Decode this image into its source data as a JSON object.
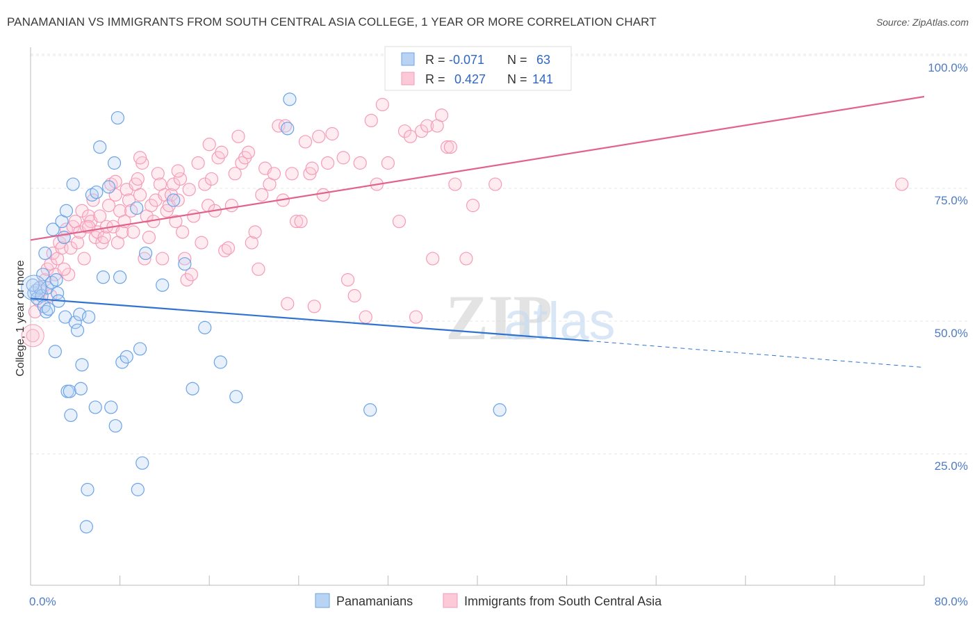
{
  "title": "PANAMANIAN VS IMMIGRANTS FROM SOUTH CENTRAL ASIA COLLEGE, 1 YEAR OR MORE CORRELATION CHART",
  "source": "Source: ZipAtlas.com",
  "watermark": {
    "zip": "ZIP",
    "atlas": "atlas"
  },
  "colors": {
    "blue": "#6aa3e8",
    "blue_line": "#2f73cf",
    "pink": "#f59bb8",
    "pink_line": "#e2628e",
    "axis_text": "#4f7bc4"
  },
  "legend": {
    "r_label": "R =",
    "n_label": "N =",
    "rows": [
      {
        "series": "blue",
        "r": "-0.071",
        "n": "63"
      },
      {
        "series": "pink",
        "r": "0.427",
        "n": "141"
      }
    ]
  },
  "chart_data": {
    "type": "scatter",
    "title": "PANAMANIAN VS IMMIGRANTS FROM SOUTH CENTRAL ASIA COLLEGE, 1 YEAR OR MORE CORRELATION CHART",
    "xlabel": "",
    "ylabel": "College, 1 year or more",
    "xlim": [
      0,
      80
    ],
    "ylim": [
      0,
      105
    ],
    "x_tick_labels": [
      "0.0%",
      "80.0%"
    ],
    "y_tick_labels": [
      "100.0%",
      "75.0%",
      "50.0%",
      "25.0%"
    ],
    "y_ticks": [
      100,
      75,
      50,
      25
    ],
    "grid": true,
    "legend_position": "bottom",
    "series": [
      {
        "name": "Panamanians",
        "color": "#6aa3e8",
        "trend": {
          "x0": 0,
          "y0": 56.5,
          "x1": 50,
          "y1": 48.5,
          "dashed_to": 80,
          "dashed_y": 43.5
        },
        "points": [
          [
            0.3,
            57.5
          ],
          [
            0.5,
            58
          ],
          [
            0.6,
            56.5
          ],
          [
            0.8,
            58.5
          ],
          [
            1.0,
            57
          ],
          [
            1.2,
            55
          ],
          [
            1.3,
            65
          ],
          [
            1.4,
            54
          ],
          [
            1.5,
            58.5
          ],
          [
            1.6,
            54.5
          ],
          [
            1.9,
            59.5
          ],
          [
            2.0,
            69.5
          ],
          [
            2.2,
            46.5
          ],
          [
            2.3,
            60
          ],
          [
            2.4,
            57.5
          ],
          [
            2.5,
            56
          ],
          [
            2.8,
            71
          ],
          [
            3.0,
            68
          ],
          [
            3.1,
            53
          ],
          [
            3.2,
            73
          ],
          [
            3.3,
            39
          ],
          [
            3.5,
            39
          ],
          [
            3.6,
            34.5
          ],
          [
            3.8,
            78
          ],
          [
            4.0,
            52
          ],
          [
            4.2,
            50.5
          ],
          [
            4.4,
            53.5
          ],
          [
            4.5,
            39.5
          ],
          [
            4.6,
            44
          ],
          [
            5.0,
            13.5
          ],
          [
            5.1,
            20.5
          ],
          [
            5.2,
            53
          ],
          [
            5.5,
            76
          ],
          [
            5.8,
            36
          ],
          [
            5.9,
            76.5
          ],
          [
            6.2,
            85
          ],
          [
            6.5,
            60.5
          ],
          [
            7.0,
            77.5
          ],
          [
            7.2,
            36
          ],
          [
            7.5,
            82
          ],
          [
            7.6,
            32.5
          ],
          [
            7.8,
            90.5
          ],
          [
            8.0,
            60.5
          ],
          [
            8.2,
            44.5
          ],
          [
            8.6,
            45.5
          ],
          [
            9.5,
            73.5
          ],
          [
            9.6,
            20.5
          ],
          [
            9.8,
            47
          ],
          [
            10.0,
            25.5
          ],
          [
            10.3,
            65
          ],
          [
            11.8,
            59
          ],
          [
            12.8,
            75
          ],
          [
            13.8,
            63
          ],
          [
            14.5,
            39.5
          ],
          [
            15.6,
            51
          ],
          [
            17.0,
            44.5
          ],
          [
            18.4,
            38
          ],
          [
            23.0,
            88.5
          ],
          [
            23.2,
            94
          ],
          [
            30.4,
            35.5
          ],
          [
            42.0,
            35.5
          ],
          [
            0.2,
            59
          ],
          [
            1.1,
            61
          ]
        ]
      },
      {
        "name": "Immigrants from South Central Asia",
        "color": "#f59bb8",
        "trend": {
          "x0": 0,
          "y0": 67.5,
          "x1": 80,
          "y1": 94.5
        },
        "points": [
          [
            0.2,
            49.5
          ],
          [
            0.4,
            54
          ],
          [
            0.8,
            56
          ],
          [
            1.0,
            58
          ],
          [
            1.3,
            60
          ],
          [
            1.5,
            62
          ],
          [
            1.8,
            63
          ],
          [
            2.0,
            65
          ],
          [
            2.2,
            61
          ],
          [
            2.4,
            64
          ],
          [
            2.6,
            67
          ],
          [
            2.8,
            66
          ],
          [
            3.0,
            68
          ],
          [
            3.2,
            69.5
          ],
          [
            3.4,
            61
          ],
          [
            3.6,
            66
          ],
          [
            3.8,
            70
          ],
          [
            4.0,
            71
          ],
          [
            4.2,
            67
          ],
          [
            4.4,
            69
          ],
          [
            4.6,
            73
          ],
          [
            4.8,
            64
          ],
          [
            5.0,
            70
          ],
          [
            5.2,
            72
          ],
          [
            5.4,
            71
          ],
          [
            5.6,
            75
          ],
          [
            5.8,
            68
          ],
          [
            6.0,
            69
          ],
          [
            6.2,
            72
          ],
          [
            6.4,
            67
          ],
          [
            6.6,
            68
          ],
          [
            6.8,
            70
          ],
          [
            7.0,
            74
          ],
          [
            7.2,
            78
          ],
          [
            7.4,
            70
          ],
          [
            7.6,
            76
          ],
          [
            7.8,
            67
          ],
          [
            8.0,
            73
          ],
          [
            8.2,
            69
          ],
          [
            8.4,
            71
          ],
          [
            8.6,
            77
          ],
          [
            8.8,
            75
          ],
          [
            9.0,
            73
          ],
          [
            9.2,
            69
          ],
          [
            9.4,
            78
          ],
          [
            9.6,
            79
          ],
          [
            9.8,
            76
          ],
          [
            10.0,
            82
          ],
          [
            10.2,
            64
          ],
          [
            10.4,
            72
          ],
          [
            10.6,
            68
          ],
          [
            10.8,
            74
          ],
          [
            11.0,
            71
          ],
          [
            11.2,
            75
          ],
          [
            11.4,
            80
          ],
          [
            11.6,
            78
          ],
          [
            11.8,
            64
          ],
          [
            12.0,
            76
          ],
          [
            12.2,
            73
          ],
          [
            12.4,
            74
          ],
          [
            12.6,
            76
          ],
          [
            12.8,
            78
          ],
          [
            13.0,
            71
          ],
          [
            13.2,
            75
          ],
          [
            13.4,
            79
          ],
          [
            13.6,
            69
          ],
          [
            13.8,
            64
          ],
          [
            14.0,
            60
          ],
          [
            14.2,
            77
          ],
          [
            14.4,
            61
          ],
          [
            14.6,
            72
          ],
          [
            15.0,
            82
          ],
          [
            15.3,
            67
          ],
          [
            15.6,
            78
          ],
          [
            15.9,
            74
          ],
          [
            16.2,
            79
          ],
          [
            16.5,
            73
          ],
          [
            16.8,
            83
          ],
          [
            17.1,
            84
          ],
          [
            17.4,
            65.5
          ],
          [
            17.7,
            66
          ],
          [
            18.0,
            74
          ],
          [
            18.3,
            80
          ],
          [
            18.6,
            87
          ],
          [
            18.9,
            82
          ],
          [
            19.2,
            83
          ],
          [
            19.5,
            84
          ],
          [
            19.8,
            67
          ],
          [
            20.1,
            69
          ],
          [
            20.4,
            62
          ],
          [
            20.7,
            76
          ],
          [
            21.0,
            81
          ],
          [
            21.4,
            78
          ],
          [
            21.8,
            80
          ],
          [
            22.2,
            89
          ],
          [
            22.6,
            75
          ],
          [
            23.0,
            55.5
          ],
          [
            23.4,
            80
          ],
          [
            23.8,
            71
          ],
          [
            24.2,
            71
          ],
          [
            24.6,
            86
          ],
          [
            25.0,
            80
          ],
          [
            25.4,
            55
          ],
          [
            25.8,
            87
          ],
          [
            26.2,
            76
          ],
          [
            26.6,
            82
          ],
          [
            27.0,
            87.5
          ],
          [
            28.0,
            83
          ],
          [
            28.4,
            60
          ],
          [
            29.0,
            57
          ],
          [
            29.5,
            82
          ],
          [
            30.0,
            53
          ],
          [
            30.5,
            90
          ],
          [
            31.0,
            78
          ],
          [
            31.5,
            93
          ],
          [
            32.0,
            82
          ],
          [
            33.0,
            71
          ],
          [
            33.5,
            88
          ],
          [
            34.0,
            87
          ],
          [
            34.5,
            53
          ],
          [
            35.0,
            88
          ],
          [
            35.5,
            89
          ],
          [
            36.0,
            64
          ],
          [
            36.4,
            89
          ],
          [
            36.8,
            91
          ],
          [
            37.3,
            85
          ],
          [
            37.6,
            85
          ],
          [
            38.0,
            78
          ],
          [
            39.0,
            64
          ],
          [
            39.6,
            74
          ],
          [
            41.6,
            78
          ],
          [
            78.0,
            78
          ],
          [
            22.8,
            89
          ],
          [
            16.0,
            85.5
          ],
          [
            13.2,
            80.5
          ],
          [
            9.8,
            83
          ],
          [
            7.6,
            78.5
          ],
          [
            5.2,
            70
          ],
          [
            3.0,
            62
          ],
          [
            1.8,
            57
          ],
          [
            25.2,
            81
          ]
        ]
      }
    ]
  },
  "bottom_legend": [
    {
      "series": "blue",
      "label": "Panamanians"
    },
    {
      "series": "pink",
      "label": "Immigrants from South Central Asia"
    }
  ]
}
